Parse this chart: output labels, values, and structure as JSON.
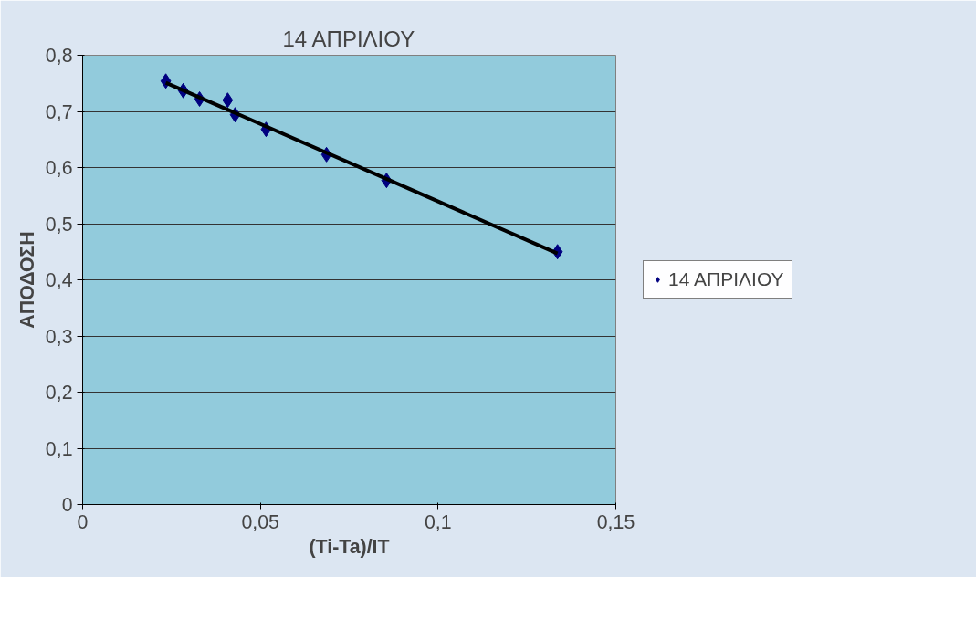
{
  "chart_data": {
    "type": "scatter",
    "title": "14 ΑΠΡΙΛΙΟΥ",
    "xlabel": "(Ti-Ta)/IT",
    "ylabel": "ΑΠΟΔΟΣΗ",
    "xlim": [
      0,
      0.15
    ],
    "ylim": [
      0,
      0.8
    ],
    "xticks": [
      0,
      {
        "value": 0.05,
        "label": "0,05"
      },
      {
        "value": 0.1,
        "label": "0,1"
      },
      {
        "value": 0.15,
        "label": "0,15"
      }
    ],
    "yticks": [
      0,
      {
        "value": 0.1,
        "label": "0,1"
      },
      {
        "value": 0.2,
        "label": "0,2"
      },
      {
        "value": 0.3,
        "label": "0,3"
      },
      {
        "value": 0.4,
        "label": "0,4"
      },
      {
        "value": 0.5,
        "label": "0,5"
      },
      {
        "value": 0.6,
        "label": "0,6"
      },
      {
        "value": 0.7,
        "label": "0,7"
      },
      {
        "value": 0.8,
        "label": "0,8"
      }
    ],
    "grid": "y",
    "legend": "right",
    "marker": "diamond",
    "series": [
      {
        "name": "14 ΑΠΡΙΛΙΟΥ",
        "color": "#000080",
        "x": [
          0.0234,
          0.0283,
          0.0329,
          0.0408,
          0.0429,
          0.0516,
          0.0686,
          0.0855,
          0.1336
        ],
        "values": [
          0.754,
          0.737,
          0.722,
          0.72,
          0.694,
          0.668,
          0.623,
          0.577,
          0.45
        ]
      },
      {
        "type": "line",
        "marker": "none",
        "color": "#000000",
        "x": [
          0.0234,
          0.1336
        ],
        "values": [
          0.751,
          0.447
        ]
      }
    ]
  }
}
